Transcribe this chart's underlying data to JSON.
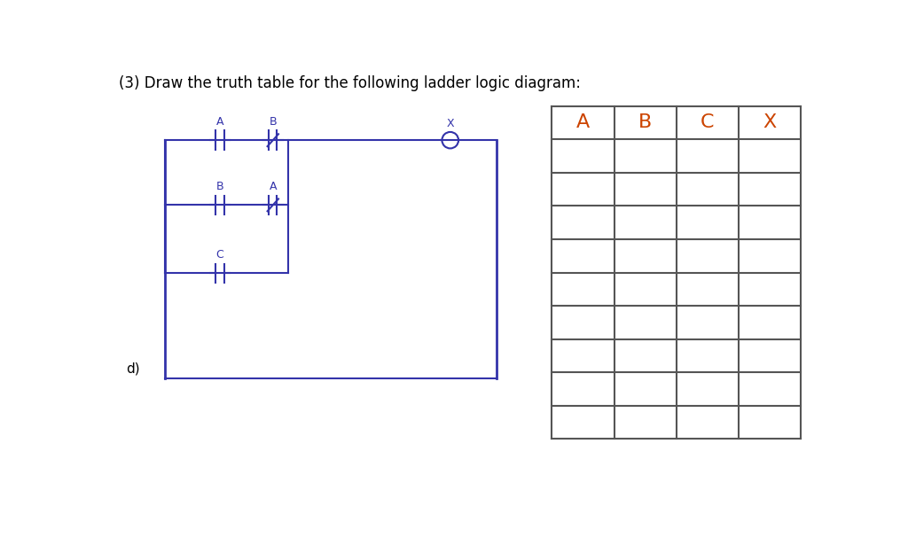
{
  "title": "(3) Draw the truth table for the following ladder logic diagram:",
  "title_color": "#000000",
  "title_fontsize": 12,
  "ladder_color": "#3333aa",
  "table_header_color": "#cc4400",
  "table_line_color": "#555555",
  "table_headers": [
    "A",
    "B",
    "C",
    "X"
  ],
  "table_rows": 9,
  "background_color": "#ffffff",
  "left_label": "d)",
  "left_label_color": "#000000"
}
